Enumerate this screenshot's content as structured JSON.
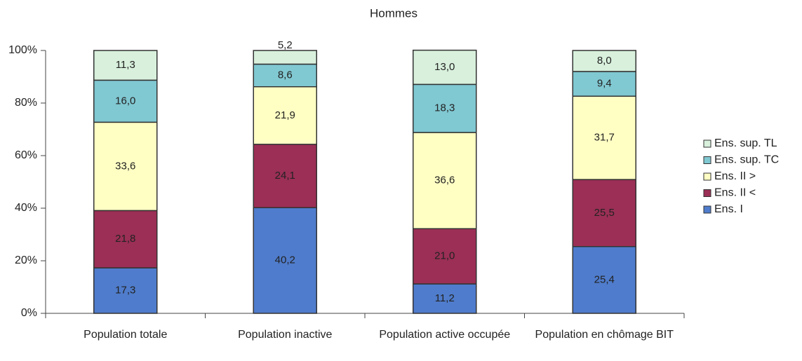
{
  "chart_data": {
    "type": "stacked_bar",
    "title": "Hommes",
    "categories": [
      "Population totale",
      "Population inactive",
      "Population active occupée",
      "Population en chômage BIT"
    ],
    "series": [
      {
        "name": "Ens.  I",
        "color": "#4f7ccc",
        "values": [
          17.3,
          40.2,
          11.2,
          25.4
        ],
        "value_labels": [
          "17,3",
          "40,2",
          "11,2",
          "25,4"
        ]
      },
      {
        "name": "Ens. II <",
        "color": "#9b2f55",
        "values": [
          21.8,
          24.1,
          21.0,
          25.5
        ],
        "value_labels": [
          "21,8",
          "24,1",
          "21,0",
          "25,5"
        ]
      },
      {
        "name": "Ens. II >",
        "color": "#ffffc4",
        "values": [
          33.6,
          21.9,
          36.6,
          31.7
        ],
        "value_labels": [
          "33,6",
          "21,9",
          "36,6",
          "31,7"
        ]
      },
      {
        "name": "Ens. sup. TC",
        "color": "#80c8d2",
        "values": [
          16.0,
          8.6,
          18.3,
          9.4
        ],
        "value_labels": [
          "16,0",
          "8,6",
          "18,3",
          "9,4"
        ]
      },
      {
        "name": "Ens. sup. TL",
        "color": "#d8f0dc",
        "values": [
          11.3,
          5.2,
          13.0,
          8.0
        ],
        "value_labels": [
          "11,3",
          "5,2",
          "13,0",
          "8,0"
        ]
      }
    ],
    "ylim": [
      0,
      100
    ],
    "yticks": [
      {
        "value": 0,
        "label": "0%"
      },
      {
        "value": 20,
        "label": "20%"
      },
      {
        "value": 40,
        "label": "40%"
      },
      {
        "value": 60,
        "label": "60%"
      },
      {
        "value": 80,
        "label": "80%"
      },
      {
        "value": 100,
        "label": "100%"
      }
    ],
    "legend": "right"
  }
}
